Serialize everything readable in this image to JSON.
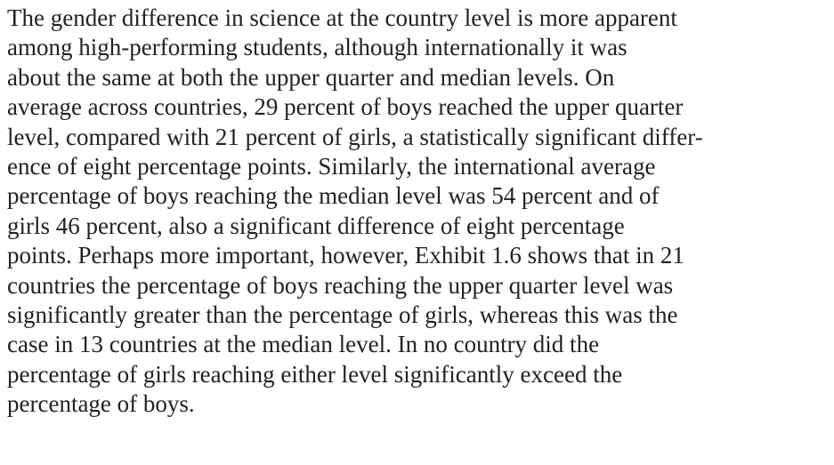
{
  "paragraph": {
    "lines": [
      "The gender difference in science at the country level is more apparent",
      "among high-performing students, although internationally it was",
      "about the same at both the upper quarter and median levels. On",
      "average across countries, 29 percent of boys reached the upper quarter",
      "level, compared with 21 percent of girls, a statistically significant differ-",
      "ence of eight percentage points. Similarly, the international average",
      "percentage of boys reaching the median level was 54 percent and of",
      "girls 46 percent, also a significant difference of eight percentage",
      "points. Perhaps more important, however, Exhibit 1.6 shows that in 21",
      "countries the percentage of boys reaching the upper quarter level was",
      "significantly greater than the percentage of girls, whereas this was the",
      "case in 13 countries at the median level. In no country did the",
      "percentage of girls reaching either level significantly exceed the",
      "percentage of boys."
    ]
  }
}
